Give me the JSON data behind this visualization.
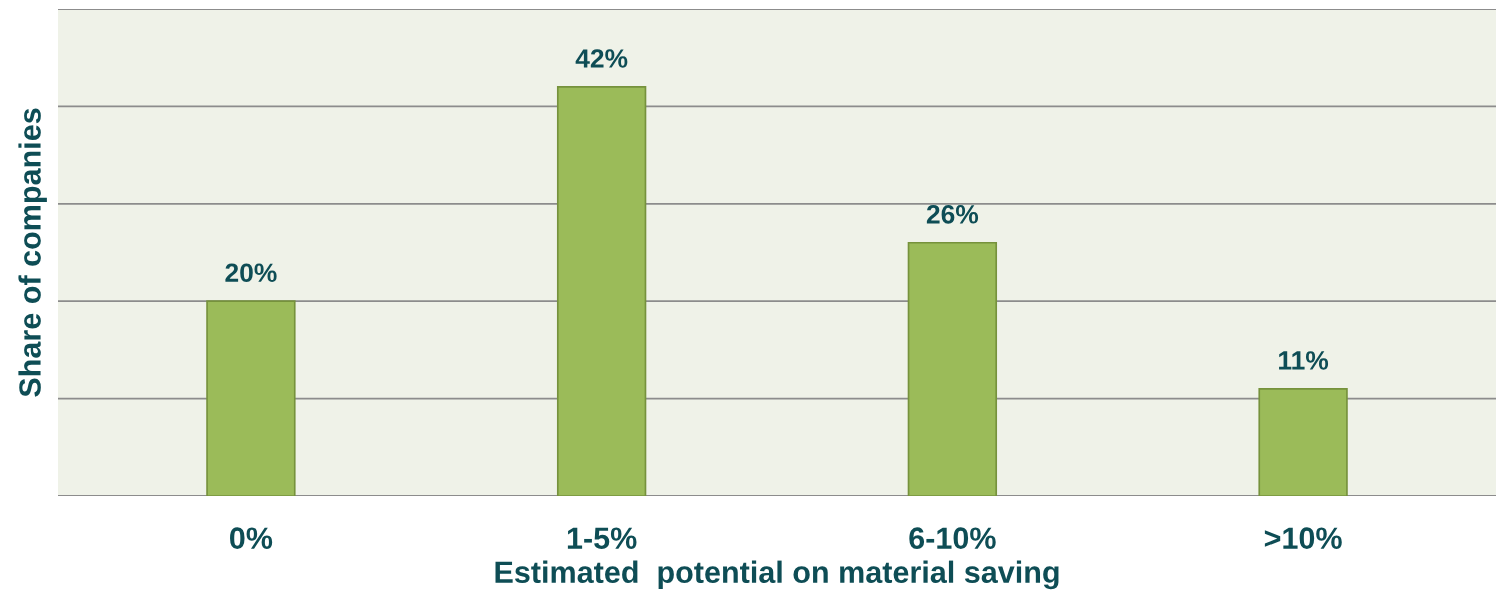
{
  "chart_data": {
    "type": "bar",
    "xlabel": "Estimated  potential on material saving",
    "ylabel": "Share of companies",
    "categories": [
      "0%",
      "1-5%",
      "6-10%",
      ">10%"
    ],
    "values": [
      20,
      42,
      26,
      11
    ],
    "value_labels": [
      "20%",
      "42%",
      "26%",
      "11%"
    ],
    "color": "#9bbb59",
    "ylim": [
      0,
      50
    ],
    "yticks": [
      {
        "value": 0,
        "label": null
      },
      {
        "value": 10,
        "label": null
      },
      {
        "value": 20,
        "label": null
      },
      {
        "value": 30,
        "label": null
      },
      {
        "value": 40,
        "label": null
      },
      {
        "value": 50,
        "label": null
      }
    ],
    "grid": "y",
    "tick_labels": "x",
    "legend": false
  }
}
